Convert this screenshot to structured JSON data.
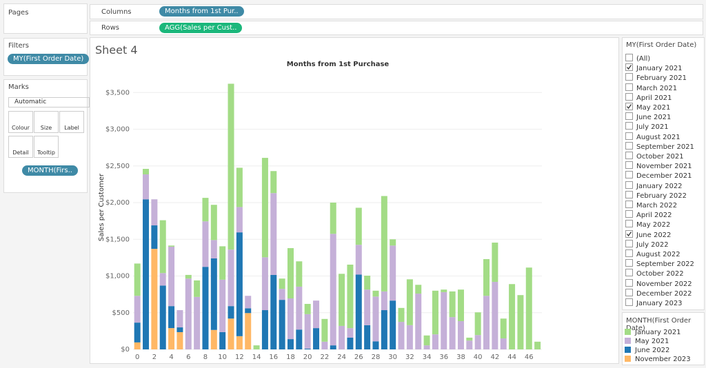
{
  "left_pane": {
    "pages": "Pages",
    "filters": "Filters",
    "filter_pill": "MY(First Order Date)",
    "marks": "Marks",
    "mark_type": "Automatic",
    "mark_buttons": [
      "Colour",
      "Size",
      "Label",
      "Detail",
      "Tooltip"
    ],
    "mark_pill": "MONTH(Firs.."
  },
  "shelves": {
    "columns_label": "Columns",
    "columns_pill": "Months from 1st Pur..",
    "rows_label": "Rows",
    "rows_pill": "AGG(Sales per Cust.."
  },
  "sheet_title": "Sheet 4",
  "filter_card": {
    "title": "MY(First Order Date)",
    "items": [
      {
        "label": "(All)",
        "checked": false
      },
      {
        "label": "January 2021",
        "checked": true
      },
      {
        "label": "February 2021",
        "checked": false
      },
      {
        "label": "March 2021",
        "checked": false
      },
      {
        "label": "April 2021",
        "checked": false
      },
      {
        "label": "May 2021",
        "checked": true
      },
      {
        "label": "June 2021",
        "checked": false
      },
      {
        "label": "July 2021",
        "checked": false
      },
      {
        "label": "August 2021",
        "checked": false
      },
      {
        "label": "September 2021",
        "checked": false
      },
      {
        "label": "October 2021",
        "checked": false
      },
      {
        "label": "November 2021",
        "checked": false
      },
      {
        "label": "December 2021",
        "checked": false
      },
      {
        "label": "January 2022",
        "checked": false
      },
      {
        "label": "February 2022",
        "checked": false
      },
      {
        "label": "March 2022",
        "checked": false
      },
      {
        "label": "April 2022",
        "checked": false
      },
      {
        "label": "May 2022",
        "checked": false
      },
      {
        "label": "June 2022",
        "checked": true
      },
      {
        "label": "July 2022",
        "checked": false
      },
      {
        "label": "August 2022",
        "checked": false
      },
      {
        "label": "September 2022",
        "checked": false
      },
      {
        "label": "October 2022",
        "checked": false
      },
      {
        "label": "November 2022",
        "checked": false
      },
      {
        "label": "December 2022",
        "checked": false
      },
      {
        "label": "January 2023",
        "checked": false
      }
    ]
  },
  "legend_title": "MONTH(First Order Date)",
  "chart_data": {
    "type": "stacked_bar",
    "title": "Months from 1st Purchase",
    "y_label": "Sales per Customer",
    "categories": [
      0,
      null,
      2,
      null,
      4,
      null,
      6,
      null,
      8,
      null,
      10,
      null,
      12,
      null,
      14,
      null,
      16,
      null,
      18,
      null,
      20,
      null,
      22,
      null,
      24,
      null,
      26,
      null,
      28,
      null,
      30,
      null,
      32,
      null,
      34,
      null,
      36,
      null,
      38,
      null,
      40,
      null,
      42,
      null,
      44,
      null,
      46,
      null
    ],
    "ylim": [
      0,
      3700
    ],
    "yticks": [
      {
        "value": 0,
        "label": "$0"
      },
      {
        "value": 500,
        "label": "$500"
      },
      {
        "value": 1000,
        "label": "$1,000"
      },
      {
        "value": 1500,
        "label": "$1,500"
      },
      {
        "value": 2000,
        "label": "$2,000"
      },
      {
        "value": 2500,
        "label": "$2,500"
      },
      {
        "value": 3000,
        "label": "$3,000"
      },
      {
        "value": 3500,
        "label": "$3,500"
      }
    ],
    "grid": true,
    "series": [
      {
        "name": "January 2021",
        "color": "#a3dc86",
        "values": [
          440,
          75,
          null,
          720,
          15,
          null,
          50,
          225,
          320,
          480,
          455,
          2260,
          535,
          null,
          55,
          1355,
          300,
          140,
          685,
          345,
          140,
          null,
          310,
          425,
          710,
          865,
          505,
          190,
          80,
          1300,
          85,
          190,
          625,
          120,
          135,
          595,
          35,
          350,
          430,
          40,
          310,
          500,
          535,
          270,
          890,
          740,
          1115,
          105
        ]
      },
      {
        "name": "May 2021",
        "color": "#c5b0d8",
        "values": [
          365,
          340,
          355,
          170,
          810,
          235,
          965,
          715,
          620,
          250,
          715,
          770,
          345,
          170,
          null,
          720,
          1115,
          150,
          555,
          585,
          470,
          375,
          105,
          1520,
          320,
          130,
          405,
          485,
          610,
          255,
          750,
          375,
          330,
          760,
          55,
          205,
          780,
          440,
          385,
          120,
          195,
          730,
          920,
          150,
          null,
          null,
          null,
          null
        ]
      },
      {
        "name": "June 2022",
        "color": "#1f77b4",
        "values": [
          270,
          2045,
          320,
          870,
          300,
          65,
          null,
          null,
          1125,
          975,
          235,
          170,
          1415,
          65,
          null,
          535,
          1015,
          675,
          140,
          270,
          10,
          290,
          null,
          55,
          null,
          160,
          1020,
          330,
          110,
          535,
          665,
          null,
          null,
          null,
          null,
          null,
          null,
          null,
          null,
          null,
          null,
          null,
          null,
          null,
          null,
          null,
          null,
          null
        ]
      },
      {
        "name": "November 2023",
        "color": "#ffb866",
        "values": [
          95,
          null,
          1370,
          null,
          290,
          235,
          null,
          null,
          null,
          265,
          null,
          420,
          180,
          495,
          null,
          null,
          null,
          null,
          null,
          null,
          null,
          null,
          null,
          null,
          null,
          null,
          null,
          null,
          null,
          null,
          null,
          null,
          null,
          null,
          null,
          null,
          null,
          null,
          null,
          null,
          null,
          null,
          null,
          null,
          null,
          null,
          null,
          null
        ]
      }
    ]
  }
}
